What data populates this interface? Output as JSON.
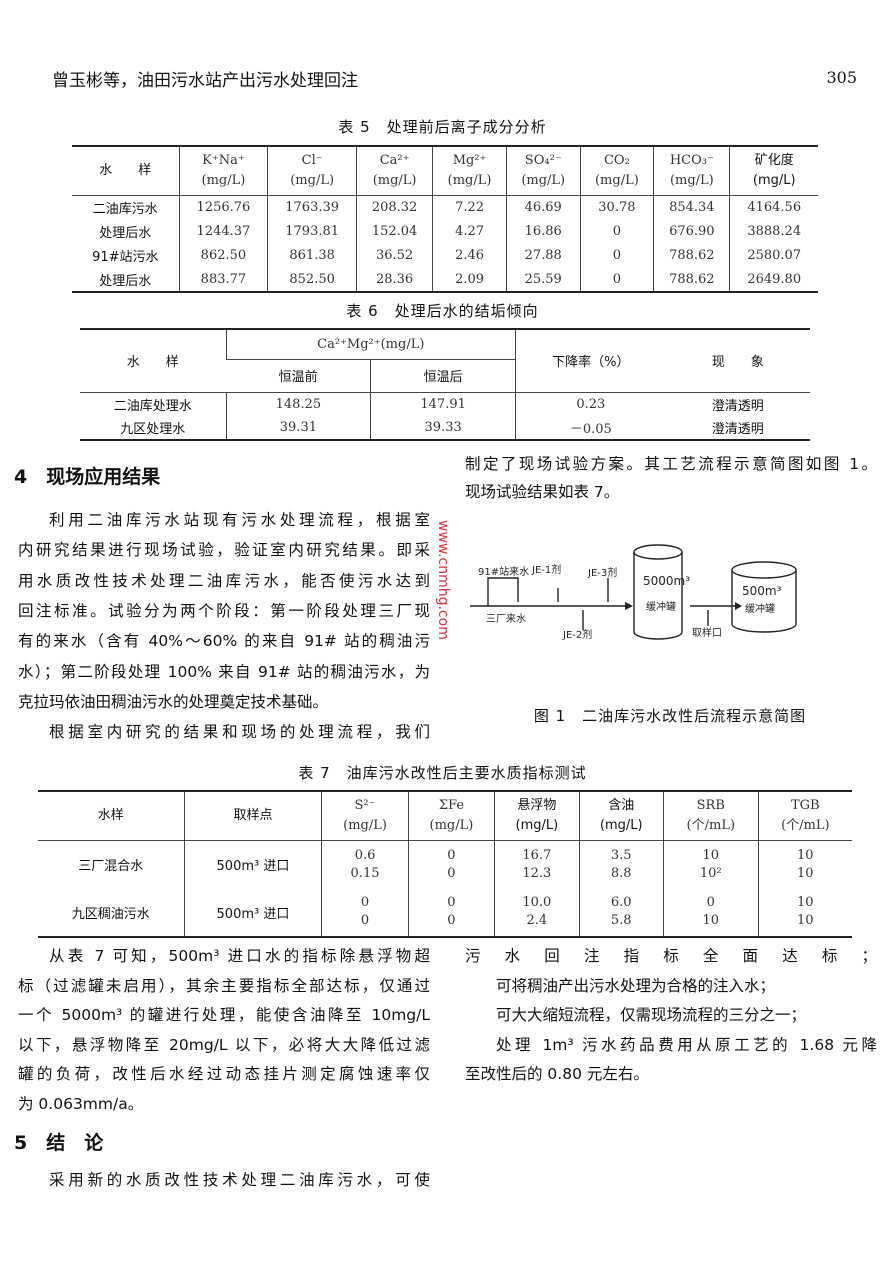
{
  "header": {
    "running_title": "曾玉彬等，油田污水站产出污水处理回注",
    "page_number": "305"
  },
  "table5": {
    "title": "表 5　处理前后离子成分分析",
    "headers": [
      [
        "水　　样",
        ""
      ],
      [
        "K⁺Na⁺",
        "(mg/L)"
      ],
      [
        "Cl⁻",
        "(mg/L)"
      ],
      [
        "Ca²⁺",
        "(mg/L)"
      ],
      [
        "Mg²⁺",
        "(mg/L)"
      ],
      [
        "SO₄²⁻",
        "(mg/L)"
      ],
      [
        "CO₂",
        "(mg/L)"
      ],
      [
        "HCO₃⁻",
        "(mg/L)"
      ],
      [
        "矿化度",
        "(mg/L)"
      ]
    ],
    "rows": [
      [
        "二油库污水",
        "1256.76",
        "1763.39",
        "208.32",
        "7.22",
        "46.69",
        "30.78",
        "854.34",
        "4164.56"
      ],
      [
        "处理后水",
        "1244.37",
        "1793.81",
        "152.04",
        "4.27",
        "16.86",
        "0",
        "676.90",
        "3888.24"
      ],
      [
        "91#站污水",
        "862.50",
        "861.38",
        "36.52",
        "2.46",
        "27.88",
        "0",
        "788.62",
        "2580.07"
      ],
      [
        "处理后水",
        "883.77",
        "852.50",
        "28.36",
        "2.09",
        "25.59",
        "0",
        "788.62",
        "2649.80"
      ]
    ]
  },
  "table6": {
    "title": "表 6　处理后水的结垢倾向",
    "col_sample": "水　　样",
    "group_header": "Ca²⁺Mg²⁺(mg/L)",
    "sub_before": "恒温前",
    "sub_after": "恒温后",
    "col_rate": "下降率（%）",
    "col_phen": "现　　象",
    "rows": [
      [
        "二油库处理水",
        "148.25",
        "147.91",
        "0.23",
        "澄清透明"
      ],
      [
        "九区处理水",
        "39.31",
        "39.33",
        "－0.05",
        "澄清透明"
      ]
    ]
  },
  "section4": {
    "number": "4",
    "title": "现场应用结果",
    "left_lines": [
      "利用二油库污水站现有污水处理流程，根据室",
      "内研究结果进行现场试验，验证室内研究结果。即采",
      "用水质改性技术处理二油库污水，能否使污水达到",
      "回注标准。试验分为两个阶段：第一阶段处理三厂现",
      "有的来水（含有 40%～60% 的来自 91# 站的稠油污",
      "水）；第二阶段处理 100% 来自 91# 站的稠油污水，为",
      "克拉玛依油田稠油污水的处理奠定技术基础。",
      "根据室内研究的结果和现场的处理流程，我们"
    ],
    "right_lines": [
      "制定了现场试验方案。其工艺流程示意简图如图 1。",
      "现场试验结果如表 7。"
    ]
  },
  "figure1": {
    "caption": "图 1　二油库污水改性后流程示意简图",
    "labels": {
      "inflow91": "91#站来水",
      "je1": "JE-1剂",
      "je3": "JE-3剂",
      "je2": "JE-2剂",
      "plant3": "三厂来水",
      "tank1_vol": "5000m³",
      "tank1_name": "缓冲罐",
      "tank2_vol": "500m³",
      "tank2_name": "缓冲罐",
      "sample": "取样口"
    }
  },
  "table7": {
    "title": "表 7　油库污水改性后主要水质指标测试",
    "headers": [
      [
        "水样",
        ""
      ],
      [
        "取样点",
        ""
      ],
      [
        "S²⁻",
        "(mg/L)"
      ],
      [
        "ΣFe",
        "(mg/L)"
      ],
      [
        "悬浮物",
        "(mg/L)"
      ],
      [
        "含油",
        "(mg/L)"
      ],
      [
        "SRB",
        "(个/mL)"
      ],
      [
        "TGB",
        "(个/mL)"
      ]
    ],
    "rows": [
      [
        "三厂混合水",
        "500m³ 进口",
        [
          "0.6",
          "0.15"
        ],
        [
          "0",
          "0"
        ],
        [
          "16.7",
          "12.3"
        ],
        [
          "3.5",
          "8.8"
        ],
        [
          "10",
          "10²"
        ],
        [
          "10",
          "10"
        ]
      ],
      [
        "九区稠油污水",
        "500m³ 进口",
        [
          "0",
          "0"
        ],
        [
          "0",
          "0"
        ],
        [
          "10.0",
          "2.4"
        ],
        [
          "6.0",
          "5.8"
        ],
        [
          "0",
          "10"
        ],
        [
          "10",
          "10"
        ]
      ]
    ]
  },
  "after_table7": {
    "left_lines": [
      "从表 7 可知，500m³ 进口水的指标除悬浮物超",
      "标（过滤罐未启用），其余主要指标全部达标，仅通过",
      "一个 5000m³ 的罐进行处理，能使含油降至 10mg/L",
      "以下，悬浮物降至 20mg/L 以下，必将大大降低过滤",
      "罐的负荷，改性后水经过动态挂片测定腐蚀速率仅",
      "为 0.063mm/a。"
    ],
    "right_lines": [
      "污水回注指标全面达标；",
      "可将稠油产出污水处理为合格的注入水；",
      "可大大缩短流程，仅需现场流程的三分之一；",
      "处理 1m³ 污水药品费用从原工艺的 1.68 元降",
      "至改性后的 0.80 元左右。"
    ]
  },
  "section5": {
    "number": "5",
    "title": "结　论",
    "lines": [
      "采用新的水质改性技术处理二油库污水，可使"
    ]
  },
  "watermark": "www.cnmhg.com"
}
